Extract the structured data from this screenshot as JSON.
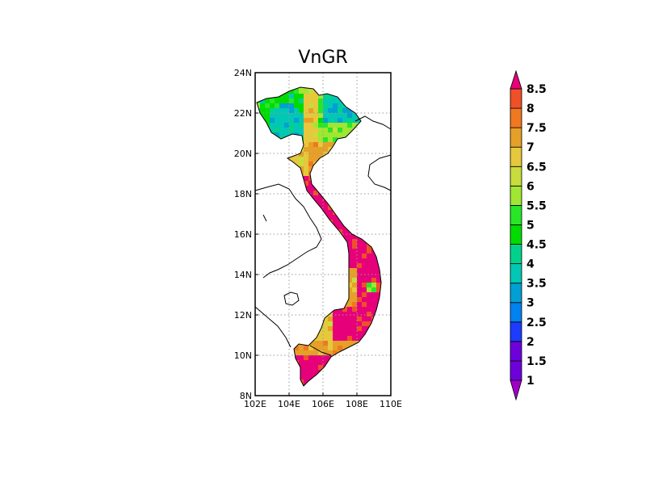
{
  "title": "VnGR",
  "map": {
    "lon_range": [
      102,
      110
    ],
    "lat_range": [
      8,
      24
    ],
    "x_ticks": [
      "102E",
      "104E",
      "106E",
      "108E",
      "110E"
    ],
    "y_ticks": [
      "8N",
      "10N",
      "12N",
      "14N",
      "16N",
      "18N",
      "20N",
      "22N",
      "24N"
    ],
    "gridlines": "dotted"
  },
  "colorbar": {
    "labels": [
      "1",
      "1.5",
      "2",
      "2.5",
      "3",
      "3.5",
      "4",
      "4.5",
      "5",
      "5.5",
      "6",
      "6.5",
      "7",
      "7.5",
      "8",
      "8.5"
    ],
    "colors": [
      "#a000c8",
      "#6e00dc",
      "#1e3cff",
      "#0082f0",
      "#00a0d2",
      "#00c8b4",
      "#00d28c",
      "#00dc00",
      "#28e628",
      "#a0e632",
      "#c8dc3c",
      "#e6c83c",
      "#e6a028",
      "#f07820",
      "#f05028",
      "#e6007a"
    ],
    "extend": "both"
  }
}
